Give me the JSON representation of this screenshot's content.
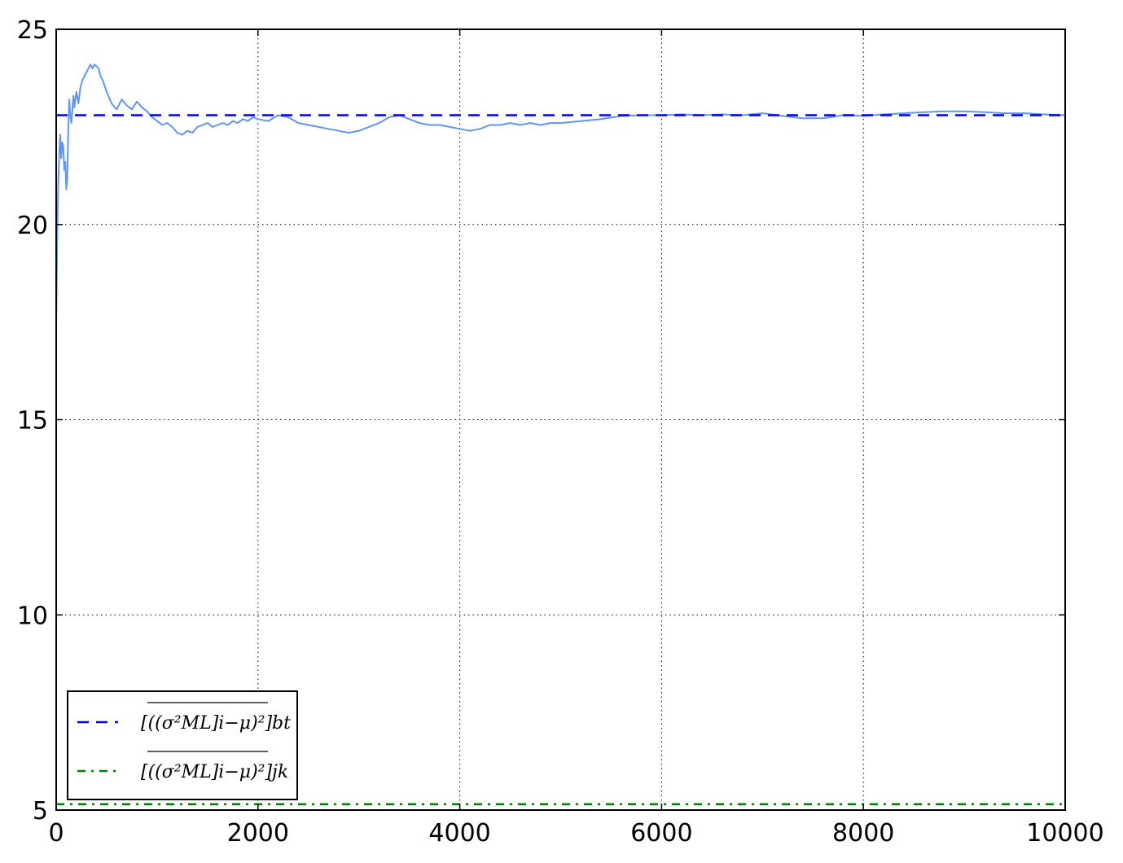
{
  "chart_data": {
    "type": "line",
    "title": "",
    "xlabel": "",
    "ylabel": "",
    "xlim": [
      0,
      10000
    ],
    "ylim": [
      5,
      25
    ],
    "xticks": [
      0,
      2000,
      4000,
      6000,
      8000,
      10000
    ],
    "yticks": [
      5,
      10,
      15,
      20,
      25
    ],
    "xtick_labels": [
      "0",
      "2000",
      "4000",
      "6000",
      "8000",
      "10000"
    ],
    "ytick_labels": [
      "5",
      "10",
      "15",
      "20",
      "25"
    ],
    "grid": true,
    "legend_position": "lower-left",
    "series": [
      {
        "color": "#6495ed",
        "style": "solid",
        "x": [
          0,
          10,
          20,
          30,
          40,
          50,
          60,
          70,
          80,
          90,
          100,
          110,
          120,
          130,
          140,
          150,
          160,
          170,
          180,
          190,
          200,
          220,
          240,
          260,
          280,
          300,
          320,
          340,
          360,
          380,
          400,
          420,
          440,
          460,
          480,
          500,
          550,
          600,
          650,
          700,
          750,
          800,
          850,
          900,
          950,
          1000,
          1050,
          1100,
          1150,
          1200,
          1250,
          1300,
          1350,
          1400,
          1450,
          1500,
          1550,
          1600,
          1650,
          1700,
          1750,
          1800,
          1850,
          1900,
          1950,
          2000,
          2100,
          2200,
          2300,
          2400,
          2500,
          2600,
          2700,
          2800,
          2900,
          3000,
          3100,
          3200,
          3300,
          3400,
          3500,
          3600,
          3700,
          3800,
          3900,
          4000,
          4100,
          4200,
          4300,
          4400,
          4500,
          4600,
          4700,
          4800,
          4900,
          5000,
          5200,
          5400,
          5600,
          5800,
          6000,
          6200,
          6400,
          6600,
          6800,
          7000,
          7200,
          7400,
          7600,
          7800,
          8000,
          8200,
          8400,
          8600,
          8800,
          9000,
          9200,
          9400,
          9600,
          9800,
          10000
        ],
        "values": [
          17.4,
          19.6,
          21.0,
          21.8,
          22.3,
          21.7,
          22.1,
          22.0,
          21.4,
          21.6,
          20.9,
          21.2,
          22.5,
          23.2,
          22.8,
          22.6,
          22.9,
          23.3,
          23.0,
          23.2,
          23.4,
          23.1,
          23.5,
          23.7,
          23.8,
          23.9,
          24.0,
          24.1,
          24.0,
          24.1,
          24.05,
          24.0,
          23.8,
          23.7,
          23.55,
          23.4,
          23.1,
          22.95,
          23.2,
          23.05,
          22.95,
          23.15,
          23.0,
          22.9,
          22.75,
          22.65,
          22.55,
          22.6,
          22.5,
          22.35,
          22.3,
          22.4,
          22.35,
          22.5,
          22.55,
          22.6,
          22.5,
          22.55,
          22.6,
          22.55,
          22.65,
          22.6,
          22.7,
          22.65,
          22.75,
          22.7,
          22.65,
          22.8,
          22.75,
          22.6,
          22.55,
          22.5,
          22.45,
          22.4,
          22.35,
          22.4,
          22.5,
          22.6,
          22.75,
          22.8,
          22.7,
          22.6,
          22.55,
          22.55,
          22.5,
          22.45,
          22.4,
          22.45,
          22.55,
          22.55,
          22.6,
          22.55,
          22.6,
          22.55,
          22.6,
          22.6,
          22.65,
          22.7,
          22.78,
          22.8,
          22.8,
          22.82,
          22.8,
          22.82,
          22.8,
          22.85,
          22.78,
          22.72,
          22.72,
          22.8,
          22.78,
          22.82,
          22.85,
          22.88,
          22.9,
          22.9,
          22.88,
          22.85,
          22.85,
          22.82,
          22.8
        ]
      },
      {
        "color": "#0000ee",
        "style": "dashed",
        "x": [
          0,
          10000
        ],
        "values": [
          22.8,
          22.8
        ]
      },
      {
        "color": "#008000",
        "style": "dashdot",
        "x": [
          0,
          10000
        ],
        "values": [
          5.15,
          5.15
        ]
      }
    ],
    "legend": {
      "entries": [
        {
          "label": "[((σ²ML]i−μ)²]bt",
          "color": "#0000ee",
          "style": "dashed"
        },
        {
          "label": "[((σ²ML]i−μ)²]jk",
          "color": "#008000",
          "style": "dashdot"
        }
      ]
    }
  }
}
